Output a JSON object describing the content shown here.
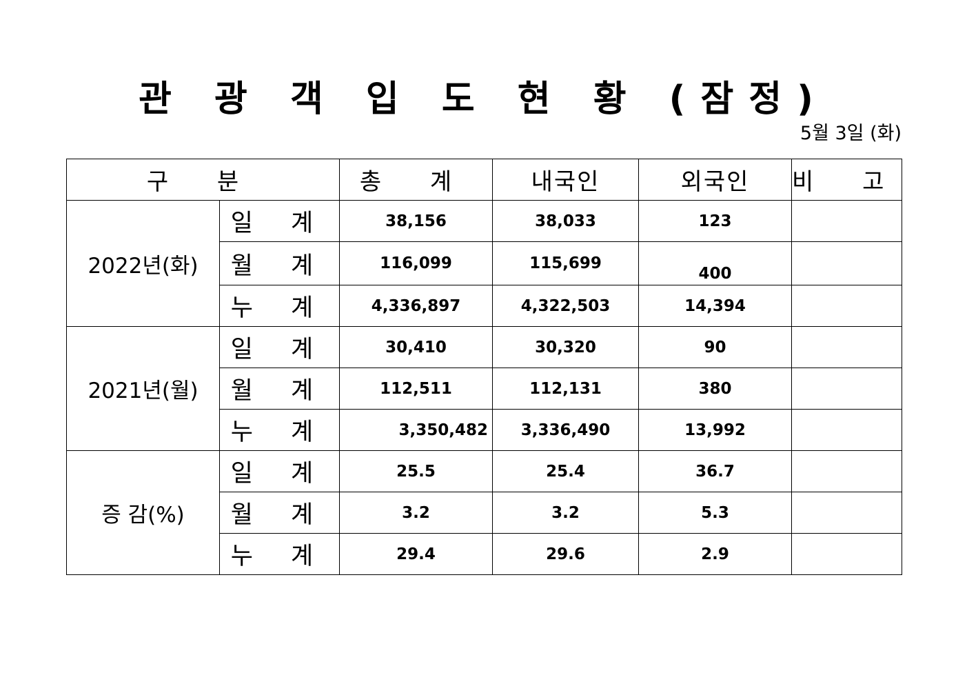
{
  "title": "관 광 객 입 도 현 황 (잠정)",
  "date": "5월 3일 (화)",
  "headers": {
    "category": "구 분",
    "total": "총 계",
    "domestic": "내국인",
    "foreign": "외국인",
    "remarks": "비 고"
  },
  "rows": {
    "y2022": {
      "label": "2022년(화)",
      "daily": {
        "label": "일 계",
        "total": "38,156",
        "domestic": "38,033",
        "foreign": "123",
        "remarks": ""
      },
      "monthly": {
        "label": "월 계",
        "total": "116,099",
        "domestic": "115,699",
        "foreign": "400",
        "remarks": ""
      },
      "cumulative": {
        "label": "누 계",
        "total": "4,336,897",
        "domestic": "4,322,503",
        "foreign": "14,394",
        "remarks": ""
      }
    },
    "y2021": {
      "label": "2021년(월)",
      "daily": {
        "label": "일 계",
        "total": "30,410",
        "domestic": "30,320",
        "foreign": "90",
        "remarks": ""
      },
      "monthly": {
        "label": "월 계",
        "total": "112,511",
        "domestic": "112,131",
        "foreign": "380",
        "remarks": ""
      },
      "cumulative": {
        "label": "누 계",
        "total": "3,350,482",
        "domestic": "3,336,490",
        "foreign": "13,992",
        "remarks": ""
      }
    },
    "change": {
      "label": "증 감(%)",
      "daily": {
        "label": "일 계",
        "total": "25.5",
        "domestic": "25.4",
        "foreign": "36.7",
        "remarks": ""
      },
      "monthly": {
        "label": "월 계",
        "total": "3.2",
        "domestic": "3.2",
        "foreign": "5.3",
        "remarks": ""
      },
      "cumulative": {
        "label": "누 계",
        "total": "29.4",
        "domestic": "29.6",
        "foreign": "2.9",
        "remarks": ""
      }
    }
  }
}
